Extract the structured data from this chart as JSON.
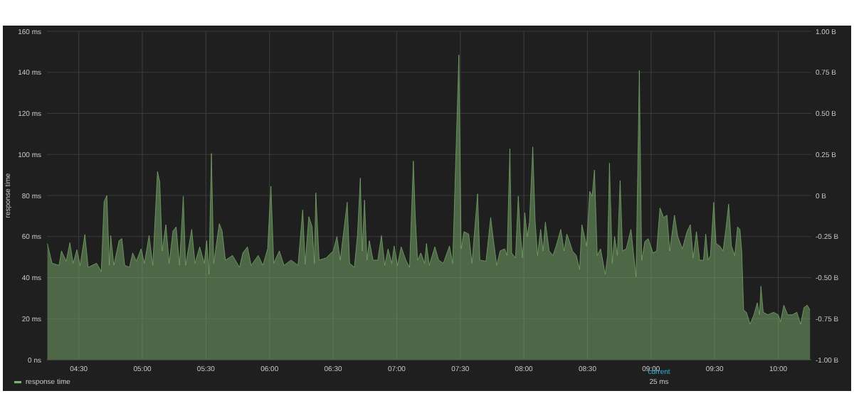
{
  "chart_data": {
    "type": "area",
    "ylabel": "response time",
    "legend": "bottom",
    "grid": true,
    "xlim": [
      4.25,
      10.26
    ],
    "ylim": [
      0,
      160
    ],
    "y2lim": [
      -1,
      1
    ],
    "xticks": [
      {
        "value": 4.5,
        "label": "04:30"
      },
      {
        "value": 5,
        "label": "05:00"
      },
      {
        "value": 5.5,
        "label": "05:30"
      },
      {
        "value": 6,
        "label": "06:00"
      },
      {
        "value": 6.5,
        "label": "06:30"
      },
      {
        "value": 7,
        "label": "07:00"
      },
      {
        "value": 7.5,
        "label": "07:30"
      },
      {
        "value": 8,
        "label": "08:00"
      },
      {
        "value": 8.5,
        "label": "08:30"
      },
      {
        "value": 9,
        "label": "09:00"
      },
      {
        "value": 9.5,
        "label": "09:30"
      },
      {
        "value": 10,
        "label": "10:00"
      }
    ],
    "yticks": [
      {
        "value": 0,
        "label": "0 ns"
      },
      {
        "value": 20,
        "label": "20 ms"
      },
      {
        "value": 40,
        "label": "40 ms"
      },
      {
        "value": 60,
        "label": "60 ms"
      },
      {
        "value": 80,
        "label": "80 ms"
      },
      {
        "value": 100,
        "label": "100 ms"
      },
      {
        "value": 120,
        "label": "120 ms"
      },
      {
        "value": 140,
        "label": "140 ms"
      },
      {
        "value": 160,
        "label": "160 ms"
      }
    ],
    "y2ticks": [
      {
        "value": -1,
        "label": "-1.00 B"
      },
      {
        "value": -0.75,
        "label": "-0.75 B"
      },
      {
        "value": -0.5,
        "label": "-0.50 B"
      },
      {
        "value": -0.25,
        "label": "-0.25 B"
      },
      {
        "value": 0,
        "label": "0 B"
      },
      {
        "value": 0.25,
        "label": "0.25 B"
      },
      {
        "value": 0.5,
        "label": "0.50 B"
      },
      {
        "value": 0.75,
        "label": "0.75 B"
      },
      {
        "value": 1,
        "label": "1.00 B"
      }
    ],
    "annotations": [
      "current",
      "25 ms"
    ],
    "series": [
      {
        "name": "response time",
        "color": "#7eb26d",
        "x": [
          4.253,
          4.29,
          4.345,
          4.364,
          4.401,
          4.43,
          4.456,
          4.485,
          4.511,
          4.548,
          4.574,
          4.64,
          4.677,
          4.699,
          4.721,
          4.74,
          4.751,
          4.776,
          4.817,
          4.839,
          4.861,
          4.898,
          4.924,
          4.953,
          4.99,
          5.016,
          5.053,
          5.082,
          5.119,
          5.137,
          5.156,
          5.185,
          5.211,
          5.241,
          5.266,
          5.292,
          5.322,
          5.34,
          5.388,
          5.414,
          5.451,
          5.487,
          5.506,
          5.524,
          5.543,
          5.561,
          5.605,
          5.627,
          5.653,
          5.709,
          5.764,
          5.79,
          5.826,
          5.856,
          5.911,
          5.948,
          5.985,
          6.011,
          6.033,
          6.077,
          6.114,
          6.169,
          6.224,
          6.261,
          6.28,
          6.309,
          6.335,
          6.353,
          6.364,
          6.39,
          6.445,
          6.501,
          6.53,
          6.556,
          6.611,
          6.63,
          6.667,
          6.692,
          6.714,
          6.729,
          6.747,
          6.766,
          6.785,
          6.814,
          6.851,
          6.88,
          6.906,
          6.932,
          6.961,
          6.98,
          7.006,
          7.035,
          7.072,
          7.101,
          7.131,
          7.146,
          7.164,
          7.19,
          7.219,
          7.234,
          7.256,
          7.3,
          7.33,
          7.367,
          7.415,
          7.44,
          7.489,
          7.507,
          7.529,
          7.566,
          7.592,
          7.636,
          7.654,
          7.702,
          7.739,
          7.757,
          7.787,
          7.813,
          7.849,
          7.868,
          7.89,
          7.904,
          7.934,
          7.956,
          7.971,
          7.989,
          8.007,
          8.026,
          8.044,
          8.07,
          8.088,
          8.107,
          8.132,
          8.151,
          8.169,
          8.199,
          8.228,
          8.254,
          8.29,
          8.316,
          8.338,
          8.364,
          8.382,
          8.412,
          8.438,
          8.456,
          8.493,
          8.518,
          8.537,
          8.555,
          8.577,
          8.603,
          8.64,
          8.658,
          8.673,
          8.695,
          8.713,
          8.735,
          8.757,
          8.776,
          8.805,
          8.842,
          8.86,
          8.882,
          8.908,
          8.926,
          8.952,
          8.978,
          9.015,
          9.044,
          9.07,
          9.099,
          9.125,
          9.147,
          9.184,
          9.21,
          9.246,
          9.283,
          9.309,
          9.331,
          9.357,
          9.382,
          9.412,
          9.43,
          9.449,
          9.467,
          9.493,
          9.511,
          9.54,
          9.566,
          9.588,
          9.61,
          9.632,
          9.658,
          9.68,
          9.699,
          9.713,
          9.728,
          9.75,
          9.779,
          9.809,
          9.835,
          9.853,
          9.864,
          9.882,
          9.919,
          9.963,
          10,
          10.018,
          10.044,
          10.074,
          10.11,
          10.147,
          10.176,
          10.202,
          10.228,
          10.25
        ],
        "values": [
          56.6,
          47,
          46,
          53,
          48,
          57,
          47,
          53.6,
          46,
          61,
          45,
          47,
          43,
          77,
          80,
          46,
          60.5,
          46,
          58,
          59,
          46,
          45,
          52,
          48,
          54,
          47,
          60.5,
          46,
          91.7,
          86.6,
          53,
          65.8,
          47,
          62.8,
          64.7,
          46,
          79.7,
          46,
          63.5,
          47,
          55,
          47,
          58,
          41.6,
          100.5,
          47,
          66.3,
          62.8,
          48.5,
          50.8,
          45,
          52,
          55,
          46,
          50.8,
          46,
          54,
          84.5,
          47,
          53,
          46,
          48.5,
          46,
          73,
          46.6,
          69.7,
          64.7,
          47,
          81.3,
          48.5,
          49.6,
          53,
          60,
          48.5,
          76.7,
          47,
          45,
          61,
          88.5,
          53,
          77.8,
          48.5,
          58,
          48.5,
          48.5,
          60.5,
          46,
          54,
          47,
          55.4,
          46,
          55,
          48.5,
          45,
          96.8,
          69.7,
          48.5,
          52,
          47,
          56.6,
          46,
          55,
          48.5,
          47,
          55.4,
          47,
          148.5,
          54,
          62.4,
          61.2,
          47,
          80.8,
          48.5,
          48,
          69.3,
          60,
          46,
          53,
          54,
          50.8,
          102.8,
          52,
          49.6,
          79.7,
          62.4,
          49.6,
          71.6,
          60,
          67,
          103.7,
          68,
          50.8,
          63.5,
          53,
          67,
          53,
          50.8,
          55.4,
          63.5,
          53,
          61.2,
          56.6,
          53,
          50.8,
          43.9,
          65.8,
          55.4,
          82,
          79.7,
          92.4,
          50.8,
          54,
          41.6,
          50.8,
          95.8,
          47,
          60,
          50.8,
          87.3,
          53,
          54,
          63.5,
          53,
          40.4,
          140.9,
          48.5,
          57.7,
          59,
          52,
          53,
          73.9,
          69.3,
          70.4,
          53,
          70.4,
          60,
          54,
          62.4,
          65.8,
          49.6,
          62.4,
          48.5,
          48.5,
          61.2,
          48.5,
          50.8,
          76.7,
          56.6,
          55.4,
          53,
          63.5,
          75.8,
          55.4,
          50.8,
          64.7,
          63.5,
          53,
          24.2,
          23.1,
          17.3,
          21.9,
          27.7,
          21.9,
          35.8,
          23.1,
          21.9,
          23.1,
          21.9,
          18.5,
          26.6,
          21.9,
          21.9,
          23.1,
          17.3,
          25.4,
          26.6,
          24.2
        ]
      }
    ]
  }
}
